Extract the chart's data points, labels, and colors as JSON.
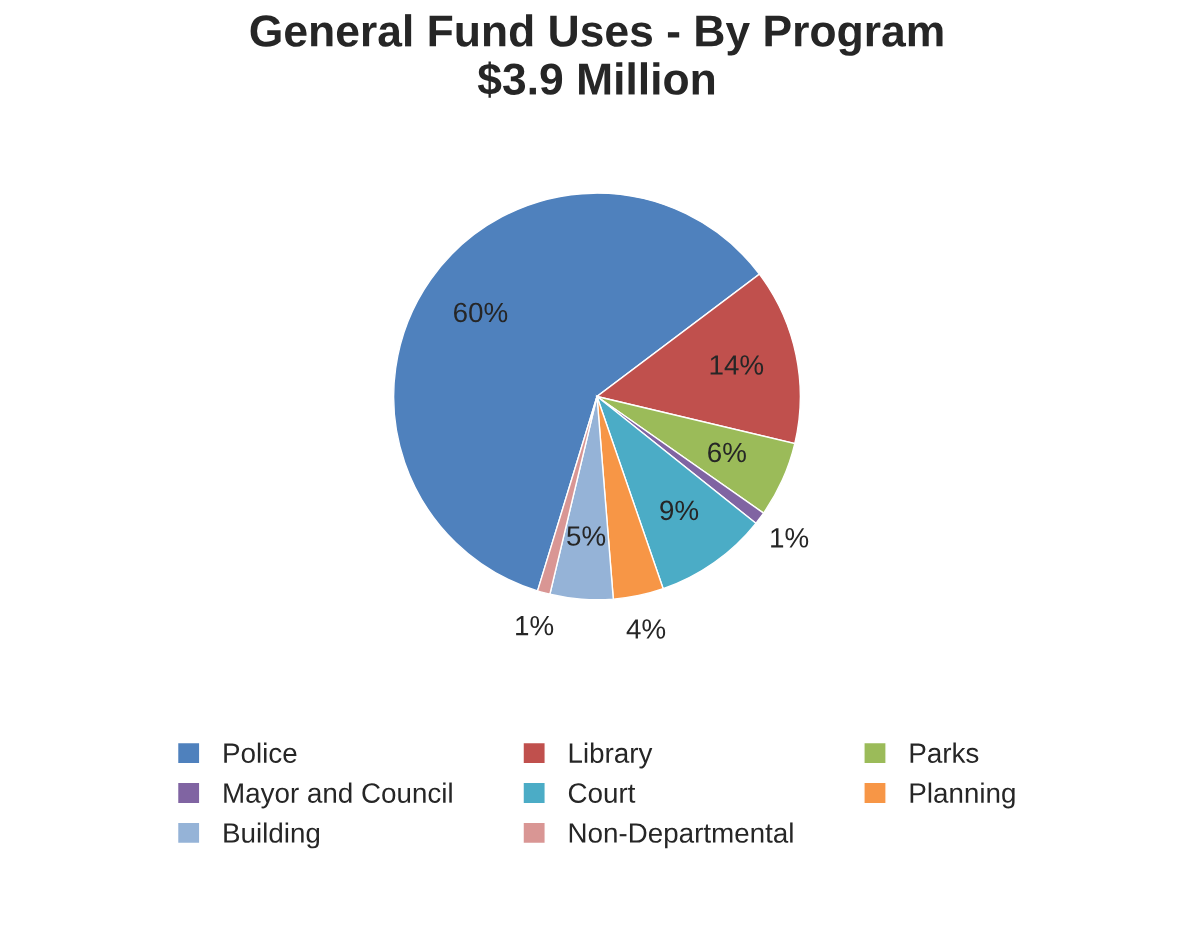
{
  "chart_data": {
    "type": "pie",
    "title": "General Fund Uses - By Program\n$3.9 Million",
    "categories": [
      "Police",
      "Library",
      "Parks",
      "Mayor and Council",
      "Court",
      "Planning",
      "Building",
      "Non-Departmental"
    ],
    "values": [
      60,
      14,
      6,
      1,
      9,
      4,
      5,
      1
    ],
    "value_labels": [
      "60%",
      "14%",
      "6%",
      "1%",
      "9%",
      "4%",
      "5%",
      "1%"
    ],
    "colors": [
      "#4f81bd",
      "#c0504d",
      "#9bbb59",
      "#8064a2",
      "#4bacc6",
      "#f79646",
      "#95b3d7",
      "#d99694"
    ],
    "legend": "bottom"
  }
}
